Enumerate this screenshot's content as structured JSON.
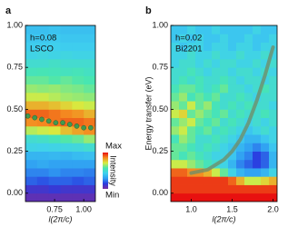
{
  "chart_data": [
    {
      "type": "heatmap",
      "panel_label": "a",
      "annotations": [
        "h=0.08",
        "LSCO"
      ],
      "xlabel": "l(2π/c)",
      "x": [
        0.55,
        0.65,
        0.75,
        0.85,
        0.95,
        1.05
      ],
      "y": [
        -0.025,
        0.025,
        0.075,
        0.125,
        0.175,
        0.225,
        0.275,
        0.325,
        0.375,
        0.425,
        0.475,
        0.525,
        0.575,
        0.625,
        0.675,
        0.725,
        0.775,
        0.825,
        0.875,
        0.925,
        0.975
      ],
      "z": [
        [
          0.05,
          0.05,
          0.05,
          0.05,
          0.05,
          0.05
        ],
        [
          0.1,
          0.1,
          0.12,
          0.1,
          0.1,
          0.1
        ],
        [
          0.2,
          0.18,
          0.2,
          0.2,
          0.18,
          0.2
        ],
        [
          0.25,
          0.25,
          0.27,
          0.25,
          0.25,
          0.24
        ],
        [
          0.3,
          0.32,
          0.3,
          0.3,
          0.3,
          0.3
        ],
        [
          0.35,
          0.35,
          0.36,
          0.35,
          0.37,
          0.38
        ],
        [
          0.45,
          0.44,
          0.45,
          0.46,
          0.47,
          0.5
        ],
        [
          0.5,
          0.52,
          0.55,
          0.58,
          0.6,
          0.65
        ],
        [
          0.68,
          0.7,
          0.72,
          0.78,
          0.82,
          0.85
        ],
        [
          0.85,
          0.86,
          0.88,
          0.9,
          0.9,
          0.88
        ],
        [
          0.9,
          0.9,
          0.88,
          0.86,
          0.84,
          0.8
        ],
        [
          0.8,
          0.8,
          0.78,
          0.75,
          0.72,
          0.7
        ],
        [
          0.7,
          0.7,
          0.68,
          0.66,
          0.65,
          0.64
        ],
        [
          0.65,
          0.64,
          0.65,
          0.63,
          0.62,
          0.6
        ],
        [
          0.6,
          0.6,
          0.58,
          0.6,
          0.58,
          0.57
        ],
        [
          0.55,
          0.56,
          0.55,
          0.54,
          0.55,
          0.53
        ],
        [
          0.5,
          0.5,
          0.52,
          0.5,
          0.5,
          0.5
        ],
        [
          0.45,
          0.46,
          0.45,
          0.46,
          0.45,
          0.45
        ],
        [
          0.42,
          0.42,
          0.43,
          0.42,
          0.42,
          0.42
        ],
        [
          0.4,
          0.4,
          0.41,
          0.4,
          0.4,
          0.4
        ],
        [
          0.38,
          0.38,
          0.39,
          0.38,
          0.38,
          0.38
        ]
      ],
      "xlim": [
        0.5,
        1.1
      ],
      "ylim": [
        -0.05,
        1.0
      ],
      "xticks": [
        0.75,
        {
          "value": 1,
          "label": "1.00"
        }
      ],
      "yticks": [
        {
          "value": 0,
          "label": "0.00"
        },
        0.25,
        {
          "value": 0.5,
          "label": "0.50"
        },
        0.75,
        {
          "value": 1,
          "label": "1.00"
        }
      ],
      "colormap": [
        "#7a2c9c",
        "#2a3be0",
        "#2f9ef2",
        "#3fd0ee",
        "#48e6b0",
        "#d8ec40",
        "#f48a20",
        "#e81010"
      ],
      "colorbar": {
        "label": "Intensity",
        "max_label": "Max",
        "min_label": "Min"
      },
      "overlay": {
        "type": "scatter",
        "color": "#3f9a4f",
        "x": [
          0.52,
          0.58,
          0.64,
          0.7,
          0.76,
          0.82,
          0.88,
          0.94,
          1.0,
          1.06
        ],
        "y": [
          0.46,
          0.45,
          0.44,
          0.43,
          0.42,
          0.42,
          0.41,
          0.4,
          0.39,
          0.39
        ]
      }
    },
    {
      "type": "heatmap",
      "panel_label": "b",
      "annotations": [
        "h=0.02",
        "Bi2201"
      ],
      "xlabel": "l(2π/c)",
      "ylabel": "Energy transfer (eV)",
      "x": [
        0.8,
        0.9,
        1.0,
        1.1,
        1.2,
        1.3,
        1.4,
        1.5,
        1.6,
        1.7,
        1.8,
        1.9,
        2.0
      ],
      "y": [
        -0.025,
        0.025,
        0.075,
        0.125,
        0.175,
        0.225,
        0.275,
        0.325,
        0.375,
        0.425,
        0.475,
        0.525,
        0.575,
        0.625,
        0.675,
        0.725,
        0.775,
        0.825,
        0.875,
        0.925,
        0.975
      ],
      "z": [
        [
          1,
          1,
          1,
          1,
          1,
          1,
          1,
          1,
          1,
          1,
          1,
          1,
          1
        ],
        [
          0.95,
          0.95,
          0.95,
          0.95,
          0.95,
          0.95,
          0.95,
          0.95,
          0.95,
          0.95,
          0.95,
          0.95,
          0.95
        ],
        [
          0.95,
          0.95,
          0.95,
          0.95,
          0.95,
          0.95,
          0.95,
          0.9,
          0.8,
          0.7,
          0.7,
          0.75,
          0.8
        ],
        [
          0.9,
          0.9,
          0.85,
          0.85,
          0.8,
          0.7,
          0.6,
          0.45,
          0.35,
          0.3,
          0.3,
          0.35,
          0.45
        ],
        [
          0.7,
          0.7,
          0.65,
          0.6,
          0.55,
          0.5,
          0.45,
          0.35,
          0.25,
          0.2,
          0.15,
          0.2,
          0.35
        ],
        [
          0.6,
          0.55,
          0.6,
          0.55,
          0.5,
          0.45,
          0.45,
          0.4,
          0.3,
          0.25,
          0.15,
          0.2,
          0.35
        ],
        [
          0.6,
          0.6,
          0.55,
          0.5,
          0.55,
          0.5,
          0.45,
          0.4,
          0.35,
          0.3,
          0.25,
          0.3,
          0.4
        ],
        [
          0.55,
          0.65,
          0.6,
          0.5,
          0.5,
          0.55,
          0.5,
          0.45,
          0.4,
          0.35,
          0.35,
          0.4,
          0.45
        ],
        [
          0.65,
          0.7,
          0.6,
          0.55,
          0.6,
          0.5,
          0.55,
          0.5,
          0.45,
          0.4,
          0.45,
          0.5,
          0.45
        ],
        [
          0.6,
          0.65,
          0.7,
          0.6,
          0.55,
          0.6,
          0.5,
          0.55,
          0.5,
          0.45,
          0.5,
          0.45,
          0.5
        ],
        [
          0.7,
          0.75,
          0.6,
          0.65,
          0.6,
          0.55,
          0.6,
          0.5,
          0.55,
          0.5,
          0.5,
          0.55,
          0.5
        ],
        [
          0.65,
          0.6,
          0.7,
          0.6,
          0.65,
          0.55,
          0.5,
          0.55,
          0.5,
          0.55,
          0.5,
          0.5,
          0.45
        ],
        [
          0.6,
          0.65,
          0.55,
          0.6,
          0.55,
          0.6,
          0.5,
          0.5,
          0.55,
          0.5,
          0.45,
          0.5,
          0.5
        ],
        [
          0.55,
          0.6,
          0.6,
          0.55,
          0.5,
          0.55,
          0.6,
          0.5,
          0.5,
          0.45,
          0.5,
          0.55,
          0.5
        ],
        [
          0.5,
          0.55,
          0.5,
          0.55,
          0.5,
          0.5,
          0.55,
          0.5,
          0.45,
          0.5,
          0.5,
          0.45,
          0.5
        ],
        [
          0.5,
          0.5,
          0.55,
          0.5,
          0.45,
          0.5,
          0.5,
          0.45,
          0.5,
          0.5,
          0.45,
          0.5,
          0.45
        ],
        [
          0.45,
          0.5,
          0.5,
          0.45,
          0.5,
          0.45,
          0.5,
          0.5,
          0.45,
          0.45,
          0.5,
          0.45,
          0.5
        ],
        [
          0.45,
          0.45,
          0.5,
          0.45,
          0.45,
          0.5,
          0.45,
          0.45,
          0.5,
          0.45,
          0.45,
          0.5,
          0.45
        ],
        [
          0.45,
          0.4,
          0.45,
          0.45,
          0.4,
          0.45,
          0.45,
          0.4,
          0.45,
          0.45,
          0.4,
          0.45,
          0.45
        ],
        [
          0.4,
          0.45,
          0.4,
          0.45,
          0.4,
          0.4,
          0.45,
          0.4,
          0.4,
          0.45,
          0.4,
          0.4,
          0.45
        ],
        [
          0.4,
          0.4,
          0.45,
          0.4,
          0.4,
          0.45,
          0.4,
          0.4,
          0.4,
          0.4,
          0.45,
          0.4,
          0.4
        ]
      ],
      "xlim": [
        0.75,
        2.05
      ],
      "ylim": [
        -0.05,
        1.0
      ],
      "xticks": [
        {
          "value": 1,
          "label": "1.0"
        },
        1.5,
        {
          "value": 2,
          "label": "2.0"
        }
      ],
      "yticks": [
        {
          "value": 0,
          "label": "0.00"
        },
        0.25,
        {
          "value": 0.5,
          "label": "0.50"
        },
        0.75,
        {
          "value": 1,
          "label": "1.00"
        }
      ],
      "colormap": [
        "#7a2c9c",
        "#2a3be0",
        "#2f9ef2",
        "#3fd0ee",
        "#48e6b0",
        "#d8ec40",
        "#f48a20",
        "#e81010"
      ],
      "overlay": {
        "type": "line",
        "color": "#6f8f6a",
        "x": [
          1.0,
          1.2,
          1.4,
          1.5,
          1.6,
          1.7,
          1.8,
          1.9,
          2.0
        ],
        "y": [
          0.12,
          0.14,
          0.2,
          0.25,
          0.32,
          0.42,
          0.55,
          0.7,
          0.87
        ]
      }
    }
  ]
}
